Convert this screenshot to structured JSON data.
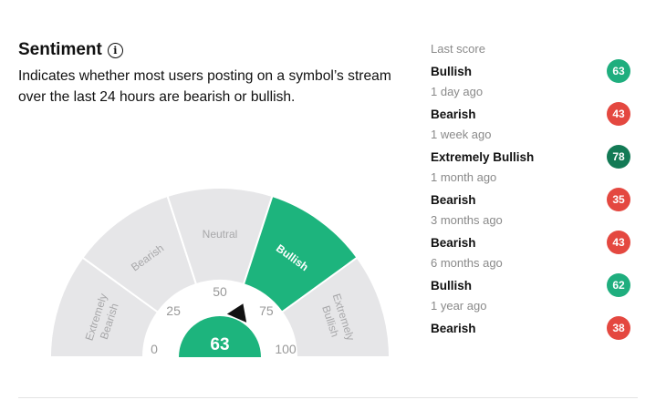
{
  "header": {
    "title": "Sentiment",
    "info_icon": "info-icon",
    "description": "Indicates whether most users posting on a symbol’s stream over the last 24 hours are bearish or bullish."
  },
  "gauge": {
    "value": 63,
    "value_label": "63",
    "min": 0,
    "max": 100,
    "segments": [
      {
        "label": "Extremely Bearish",
        "lines": [
          "Extremely",
          "Bearish"
        ],
        "active": false
      },
      {
        "label": "Bearish",
        "lines": [
          "Bearish"
        ],
        "active": false
      },
      {
        "label": "Neutral",
        "lines": [
          "Neutral"
        ],
        "active": false
      },
      {
        "label": "Bullish",
        "lines": [
          "Bullish"
        ],
        "active": true
      },
      {
        "label": "Extremely Bullish",
        "lines": [
          "Extremely",
          "Bullish"
        ],
        "active": false
      }
    ],
    "ticks": [
      "0",
      "25",
      "50",
      "75",
      "100"
    ],
    "colors": {
      "inactive": "#e6e6e8",
      "active": "#1db47d",
      "inactive_text": "#a8a8aa",
      "active_text": "#ffffff",
      "needle": "#111111"
    }
  },
  "history": [
    {
      "period": "Last score",
      "label": "Bullish",
      "score": "63",
      "color": "#1fae7e"
    },
    {
      "period": "1 day ago",
      "label": "Bearish",
      "score": "43",
      "color": "#e44840"
    },
    {
      "period": "1 week ago",
      "label": "Extremely Bullish",
      "score": "78",
      "color": "#137a55"
    },
    {
      "period": "1 month ago",
      "label": "Bearish",
      "score": "35",
      "color": "#e44840"
    },
    {
      "period": "3 months ago",
      "label": "Bearish",
      "score": "43",
      "color": "#e44840"
    },
    {
      "period": "6 months ago",
      "label": "Bullish",
      "score": "62",
      "color": "#1fae7e"
    },
    {
      "period": "1 year ago",
      "label": "Bearish",
      "score": "38",
      "color": "#e44840"
    }
  ]
}
